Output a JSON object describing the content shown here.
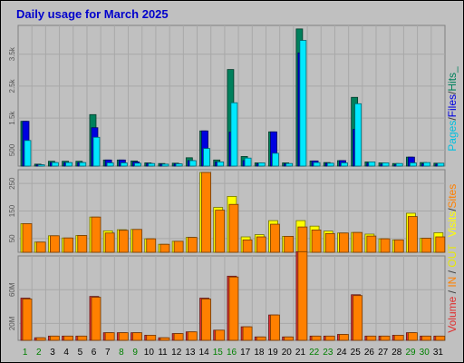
{
  "title": "Daily usage for March 2025",
  "colors": {
    "background": "#c0c0c0",
    "title": "#0000cc",
    "hits": "#00805c",
    "files": "#0000e0",
    "pages": "#00e8ff",
    "visits": "#ffff00",
    "sites": "#ff8000",
    "kbytes": "#e03030",
    "in": "#ff8000",
    "out": "#ffff00",
    "weekend_label": "#008000",
    "weekday_label": "#000000"
  },
  "legend": {
    "top": [
      {
        "text": "Pages",
        "color": "#00c0e0"
      },
      {
        "text": "/",
        "color": "#404040"
      },
      {
        "text": "Files",
        "color": "#0000e0"
      },
      {
        "text": "/",
        "color": "#404040"
      },
      {
        "text": "Hits_",
        "color": "#00805c"
      }
    ],
    "middle": [
      {
        "text": "Visits",
        "color": "#ffff00"
      },
      {
        "text": "/",
        "color": "#404040"
      },
      {
        "text": "Sites",
        "color": "#ff8000"
      }
    ],
    "bottom": [
      {
        "text": "Volume",
        "color": "#e03030"
      },
      {
        "text": " / ",
        "color": "#404040"
      },
      {
        "text": "IN",
        "color": "#ff8000"
      },
      {
        "text": " / ",
        "color": "#404040"
      },
      {
        "text": "OUT",
        "color": "#e8e800"
      }
    ]
  },
  "chart_data": [
    {
      "type": "bar",
      "categories": [
        "1",
        "2",
        "3",
        "4",
        "5",
        "6",
        "7",
        "8",
        "9",
        "10",
        "11",
        "12",
        "13",
        "14",
        "15",
        "16",
        "17",
        "18",
        "19",
        "20",
        "21",
        "22",
        "23",
        "24",
        "25",
        "26",
        "27",
        "28",
        "29",
        "30",
        "31"
      ],
      "weekend_days": [
        "1",
        "2",
        "8",
        "9",
        "15",
        "16",
        "22",
        "23",
        "29",
        "30"
      ],
      "ylim": [
        0,
        4400
      ],
      "yticks": [
        {
          "label": "500",
          "value": 500
        },
        {
          "label": "1.5k",
          "value": 1500
        },
        {
          "label": "2.5k",
          "value": 2500
        },
        {
          "label": "3.5k",
          "value": 3500
        }
      ],
      "series": [
        {
          "name": "Hits",
          "values": [
            1400,
            60,
            150,
            150,
            150,
            1610,
            190,
            190,
            160,
            100,
            80,
            90,
            260,
            1100,
            190,
            3020,
            300,
            100,
            1070,
            100,
            4290,
            160,
            110,
            170,
            2150,
            130,
            100,
            80,
            280,
            110,
            90
          ]
        },
        {
          "name": "Files",
          "values": [
            1400,
            40,
            110,
            110,
            110,
            1200,
            190,
            190,
            130,
            80,
            60,
            70,
            170,
            1100,
            130,
            1060,
            170,
            70,
            1070,
            70,
            3540,
            160,
            90,
            170,
            1150,
            90,
            60,
            40,
            280,
            70,
            60
          ]
        },
        {
          "name": "Pages",
          "values": [
            800,
            40,
            110,
            110,
            110,
            900,
            100,
            100,
            90,
            80,
            60,
            70,
            170,
            550,
            130,
            1980,
            250,
            100,
            400,
            80,
            3930,
            110,
            90,
            100,
            1950,
            130,
            100,
            80,
            100,
            110,
            90
          ]
        }
      ]
    },
    {
      "type": "bar",
      "categories": [
        "1",
        "2",
        "3",
        "4",
        "5",
        "6",
        "7",
        "8",
        "9",
        "10",
        "11",
        "12",
        "13",
        "14",
        "15",
        "16",
        "17",
        "18",
        "19",
        "20",
        "21",
        "22",
        "23",
        "24",
        "25",
        "26",
        "27",
        "28",
        "29",
        "30",
        "31"
      ],
      "ylim": [
        0,
        300
      ],
      "yticks": [
        {
          "label": "50",
          "value": 50
        },
        {
          "label": "150",
          "value": 150
        },
        {
          "label": "250",
          "value": 250
        }
      ],
      "series": [
        {
          "name": "Visits",
          "values": [
            104,
            37,
            60,
            52,
            61,
            128,
            78,
            82,
            83,
            49,
            29,
            40,
            54,
            290,
            163,
            203,
            56,
            64,
            115,
            58,
            115,
            95,
            77,
            70,
            72,
            66,
            49,
            45,
            142,
            51,
            71
          ]
        },
        {
          "name": "Sites",
          "values": [
            104,
            37,
            60,
            52,
            61,
            128,
            70,
            80,
            83,
            49,
            29,
            40,
            54,
            290,
            153,
            174,
            45,
            56,
            102,
            58,
            92,
            81,
            68,
            70,
            72,
            59,
            49,
            45,
            130,
            51,
            56
          ]
        }
      ]
    },
    {
      "type": "bar",
      "categories": [
        "1",
        "2",
        "3",
        "4",
        "5",
        "6",
        "7",
        "8",
        "9",
        "10",
        "11",
        "12",
        "13",
        "14",
        "15",
        "16",
        "17",
        "18",
        "19",
        "20",
        "21",
        "22",
        "23",
        "24",
        "25",
        "26",
        "27",
        "28",
        "29",
        "30",
        "31"
      ],
      "ylim": [
        0,
        100
      ],
      "yticks": [
        {
          "label": "20M",
          "value": 20
        },
        {
          "label": "60M",
          "value": 60
        }
      ],
      "series": [
        {
          "name": "Volume",
          "values": [
            50,
            3,
            5,
            5,
            5,
            52,
            9,
            9,
            9,
            6,
            3,
            8,
            10,
            50,
            12,
            76,
            16,
            4,
            30,
            4,
            105,
            5,
            5,
            7,
            54,
            5,
            5,
            6,
            9,
            5,
            5
          ]
        },
        {
          "name": "IN",
          "values": [
            49,
            3,
            5,
            5,
            5,
            51,
            9,
            9,
            9,
            6,
            3,
            8,
            10,
            49,
            12,
            75,
            16,
            4,
            30,
            4,
            105,
            5,
            5,
            7,
            53,
            5,
            5,
            6,
            9,
            5,
            5
          ]
        }
      ]
    }
  ]
}
